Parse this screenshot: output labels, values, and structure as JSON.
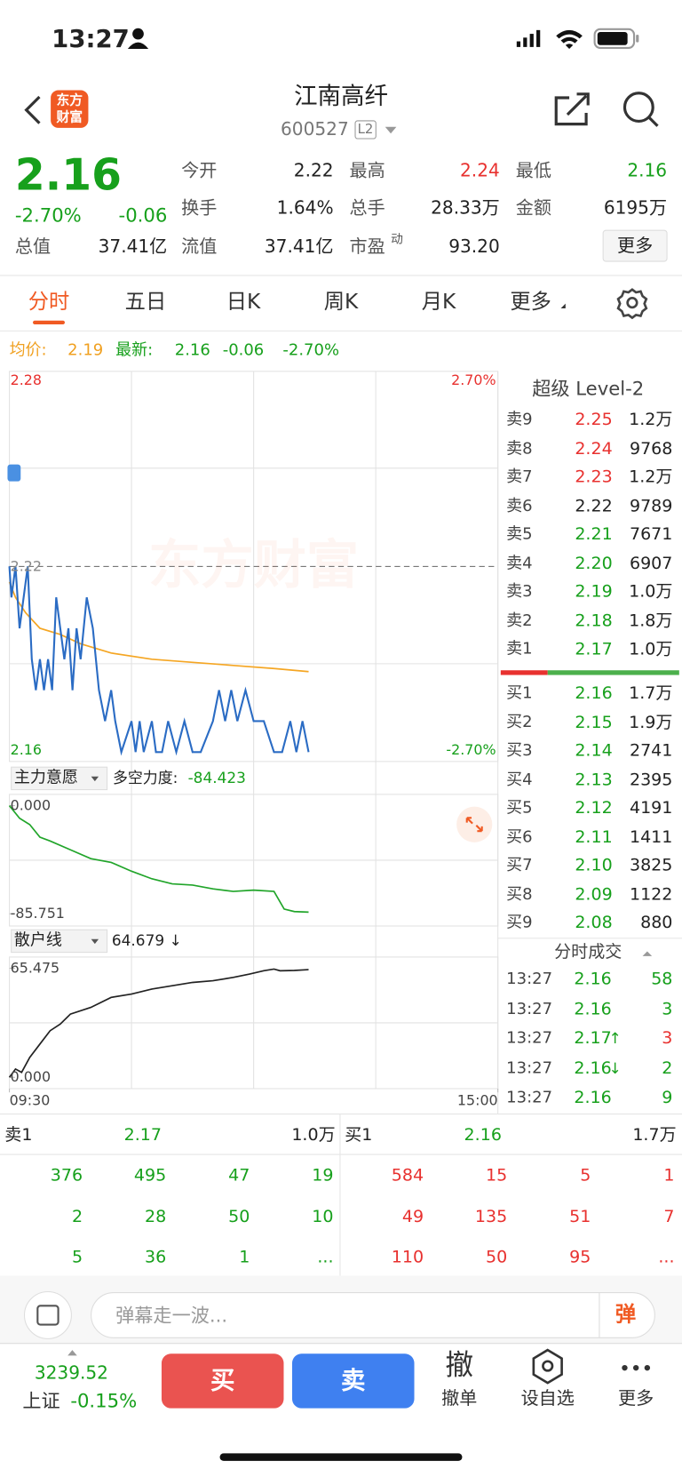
{
  "status_bar": {
    "time": "13:27"
  },
  "header": {
    "logo": [
      "东方",
      "财富"
    ],
    "title": "江南高纤",
    "code": "600527",
    "badge": "L2"
  },
  "quote": {
    "price": "2.16",
    "change_pct": "-2.70%",
    "change": "-0.06",
    "stats": [
      {
        "label": "今开",
        "value": "2.22"
      },
      {
        "label": "最高",
        "value": "2.24"
      },
      {
        "label": "最低",
        "value": "2.16"
      },
      {
        "label": "换手",
        "value": "1.64%"
      },
      {
        "label": "总手",
        "value": "28.33万"
      },
      {
        "label": "金额",
        "value": "6195万"
      },
      {
        "label": "总值",
        "value": "37.41亿"
      },
      {
        "label": "流值",
        "value": "37.41亿"
      },
      {
        "label": "市盈",
        "sup": "动",
        "value": "93.20"
      }
    ],
    "more": "更多"
  },
  "tabs": [
    "分时",
    "五日",
    "日K",
    "周K",
    "月K",
    "更多"
  ],
  "intraday": {
    "legend": {
      "avg_label": "均价:",
      "avg": "2.19",
      "latest_label": "最新:",
      "latest": "2.16",
      "change": "-0.06",
      "change_pct": "-2.70%"
    },
    "watermark": "东方财富",
    "yticks": [
      2.28,
      2.22,
      2.16
    ],
    "pct_labels": [
      "2.70%",
      "-2.70%"
    ],
    "xlim": [
      0,
      240
    ],
    "xticks": [
      {
        "value": 0,
        "label": "09:30"
      },
      {
        "value": 240,
        "label": "15:00"
      }
    ],
    "price": {
      "x": [
        0,
        1,
        3,
        5,
        7,
        9,
        11,
        13,
        15,
        17,
        19,
        21,
        23,
        25,
        27,
        29,
        31,
        33,
        35,
        38,
        41,
        44,
        47,
        50,
        52,
        55,
        60,
        62,
        64,
        66,
        70,
        72,
        75,
        78,
        82,
        86,
        90,
        94,
        100,
        103,
        106,
        109,
        112,
        116,
        120,
        125,
        130,
        134,
        138,
        141,
        144,
        147
      ],
      "values": [
        2.22,
        2.21,
        2.22,
        2.2,
        2.21,
        2.22,
        2.19,
        2.18,
        2.19,
        2.18,
        2.19,
        2.18,
        2.21,
        2.2,
        2.19,
        2.2,
        2.18,
        2.2,
        2.19,
        2.21,
        2.2,
        2.18,
        2.17,
        2.18,
        2.17,
        2.16,
        2.17,
        2.16,
        2.17,
        2.16,
        2.17,
        2.16,
        2.16,
        2.17,
        2.16,
        2.17,
        2.16,
        2.16,
        2.17,
        2.18,
        2.17,
        2.18,
        2.17,
        2.18,
        2.17,
        2.17,
        2.16,
        2.16,
        2.17,
        2.16,
        2.17,
        2.16
      ]
    },
    "avg": {
      "x": [
        0,
        3,
        8,
        15,
        25,
        35,
        50,
        70,
        90,
        110,
        130,
        147
      ],
      "values": [
        2.215,
        2.21,
        2.205,
        2.2,
        2.198,
        2.195,
        2.192,
        2.19,
        2.189,
        2.188,
        2.187,
        2.186
      ]
    }
  },
  "indicator1": {
    "name": "主力意愿",
    "metric_label": "多空力度:",
    "metric": "-84.423",
    "yticks": [
      {
        "value": 0,
        "label": "0.000"
      },
      {
        "value": -85.751,
        "label": "-85.751"
      }
    ],
    "x": [
      0,
      5,
      10,
      15,
      20,
      30,
      40,
      50,
      60,
      70,
      80,
      90,
      100,
      110,
      120,
      130,
      135,
      140,
      147
    ],
    "values": [
      0,
      -10,
      -15,
      -25,
      -28,
      -35,
      -42,
      -45,
      -52,
      -58,
      -62,
      -63,
      -66,
      -68,
      -67,
      -68,
      -82,
      -84,
      -84.423
    ]
  },
  "indicator2": {
    "name": "散户线",
    "metric": "64.679 ↓",
    "yticks": [
      {
        "value": 65.475,
        "label": "65.475"
      },
      {
        "value": 0,
        "label": "0.000"
      }
    ],
    "x": [
      0,
      3,
      6,
      10,
      15,
      20,
      25,
      30,
      40,
      50,
      60,
      70,
      80,
      90,
      100,
      110,
      118,
      125,
      130,
      133,
      140,
      147
    ],
    "values": [
      0,
      5,
      3,
      12,
      20,
      28,
      32,
      38,
      42,
      48,
      50,
      53,
      55,
      57,
      58,
      60,
      62,
      64,
      65,
      64,
      64.2,
      64.679
    ]
  },
  "order_book": {
    "title": "超级 Level-2",
    "asks": [
      {
        "label": "卖9",
        "price": "2.25",
        "volume": "1.2万"
      },
      {
        "label": "卖8",
        "price": "2.24",
        "volume": "9768"
      },
      {
        "label": "卖7",
        "price": "2.23",
        "volume": "1.2万"
      },
      {
        "label": "卖6",
        "price": "2.22",
        "volume": "9789"
      },
      {
        "label": "卖5",
        "price": "2.21",
        "volume": "7671"
      },
      {
        "label": "卖4",
        "price": "2.20",
        "volume": "6907"
      },
      {
        "label": "卖3",
        "price": "2.19",
        "volume": "1.0万"
      },
      {
        "label": "卖2",
        "price": "2.18",
        "volume": "1.8万"
      },
      {
        "label": "卖1",
        "price": "2.17",
        "volume": "1.0万"
      }
    ],
    "bids": [
      {
        "label": "买1",
        "price": "2.16",
        "volume": "1.7万"
      },
      {
        "label": "买2",
        "price": "2.15",
        "volume": "1.9万"
      },
      {
        "label": "买3",
        "price": "2.14",
        "volume": "2741"
      },
      {
        "label": "买4",
        "price": "2.13",
        "volume": "2395"
      },
      {
        "label": "买5",
        "price": "2.12",
        "volume": "4191"
      },
      {
        "label": "买6",
        "price": "2.11",
        "volume": "1411"
      },
      {
        "label": "买7",
        "price": "2.10",
        "volume": "3825"
      },
      {
        "label": "买8",
        "price": "2.09",
        "volume": "1122"
      },
      {
        "label": "买9",
        "price": "2.08",
        "volume": "880"
      }
    ]
  },
  "trades": {
    "title": "分时成交",
    "rows": [
      {
        "time": "13:27",
        "price": "2.16",
        "volume": "58"
      },
      {
        "time": "13:27",
        "price": "2.16",
        "volume": "3"
      },
      {
        "time": "13:27",
        "price": "2.17",
        "arrow": "↑",
        "volume": "3"
      },
      {
        "time": "13:27",
        "price": "2.16",
        "arrow": "↓",
        "volume": "2"
      },
      {
        "time": "13:27",
        "price": "2.16",
        "volume": "9"
      }
    ]
  },
  "queue": {
    "ask": {
      "label": "卖1",
      "price": "2.17",
      "volume": "1.0万",
      "orders": [
        "376",
        "495",
        "47",
        "19",
        "2",
        "28",
        "50",
        "10",
        "5",
        "36",
        "1",
        "..."
      ]
    },
    "bid": {
      "label": "买1",
      "price": "2.16",
      "volume": "1.7万",
      "orders": [
        "584",
        "15",
        "5",
        "1",
        "49",
        "135",
        "51",
        "7",
        "110",
        "50",
        "95",
        "..."
      ]
    }
  },
  "comment": {
    "placeholder": "弹幕走一波...",
    "button": "弹"
  },
  "footer": {
    "index_value": "3239.52",
    "index_name": "上证",
    "index_change": "-0.15%",
    "buy": "买",
    "sell": "卖",
    "cancel_icon": "撤",
    "cancel": "撤单",
    "watch": "设自选",
    "more": "更多"
  }
}
